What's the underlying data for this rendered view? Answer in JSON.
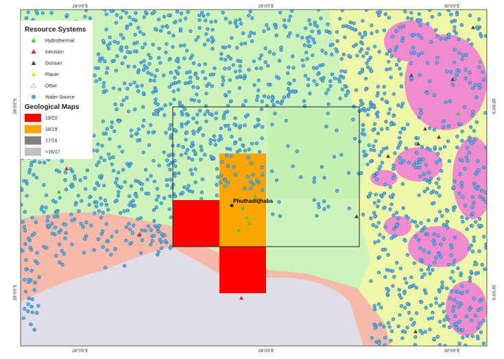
{
  "legend": {
    "resource_title": "Resource Systems",
    "resource_items": [
      "Hydrothermal",
      "Intrusion",
      "Gossan",
      "Placer",
      "Other",
      "Water Source"
    ],
    "geo_title": "Geological Maps",
    "geo_items": [
      "19/20",
      "18/19",
      "17/18",
      "<16/17"
    ]
  },
  "axes": {
    "top": [
      "28°0'0\"E",
      "29°0'0\"E",
      "30°0'0\"E"
    ],
    "bottom": [
      "28°0'0\"E",
      "29°0'0\"E",
      "30°0'0\"E"
    ],
    "left": [
      "28°0'0\"S",
      "29°0'0\"S"
    ],
    "right": [
      "28°0'0\"S",
      "29°0'0\"S"
    ]
  },
  "place": "Phuthaditjhaba"
}
